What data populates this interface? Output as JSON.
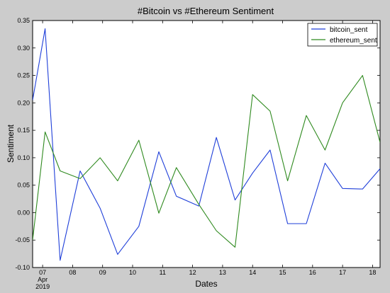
{
  "chart_data": {
    "type": "line",
    "title": "#Bitcoin vs #Ethereum Sentiment",
    "xlabel": "Dates",
    "ylabel": "Sentiment",
    "ylim": [
      -0.1,
      0.35
    ],
    "yticks": [
      "0.35",
      "0.30",
      "0.25",
      "0.20",
      "0.15",
      "0.10",
      "0.05",
      "0.00",
      "-0.05",
      "-0.10"
    ],
    "xticks": [
      "07",
      "08",
      "09",
      "10",
      "11",
      "12",
      "13",
      "14",
      "15",
      "16",
      "17",
      "18"
    ],
    "xtick_sub": [
      "Apr",
      "2019"
    ],
    "x_dates": [
      "2019-04-06 16:00",
      "2019-04-07 02:00",
      "2019-04-07 14:00",
      "2019-04-08 06:00",
      "2019-04-08 22:00",
      "2019-04-09 12:00",
      "2019-04-10 05:00",
      "2019-04-10 21:00",
      "2019-04-11 11:00",
      "2019-04-12 05:00",
      "2019-04-12 19:00",
      "2019-04-13 10:00",
      "2019-04-14 00:00",
      "2019-04-14 14:00",
      "2019-04-15 04:00",
      "2019-04-15 19:00",
      "2019-04-16 10:00",
      "2019-04-17 00:00",
      "2019-04-17 16:00",
      "2019-04-18 06:00"
    ],
    "legend_position": "top-right",
    "grid": false,
    "series": [
      {
        "name": "bitcoin_sent",
        "color": "#1f3fd9",
        "values": [
          0.205,
          0.335,
          -0.087,
          0.076,
          0.008,
          -0.076,
          -0.025,
          0.111,
          0.03,
          0.012,
          0.137,
          0.023,
          0.072,
          0.114,
          -0.02,
          -0.02,
          0.09,
          0.044,
          0.043,
          0.08
        ]
      },
      {
        "name": "ethereum_sent",
        "color": "#2f8a1f",
        "values": [
          -0.05,
          0.147,
          0.076,
          0.062,
          0.1,
          0.058,
          0.132,
          -0.001,
          0.082,
          0.015,
          -0.033,
          -0.063,
          0.215,
          0.185,
          0.058,
          0.177,
          0.114,
          0.2,
          0.25,
          0.128
        ]
      }
    ]
  }
}
